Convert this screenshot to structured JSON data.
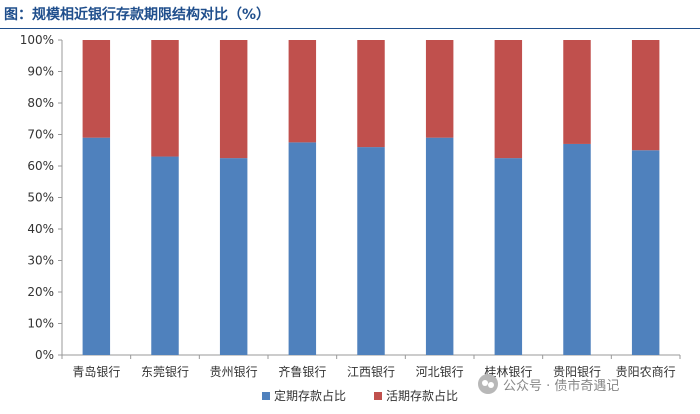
{
  "title": "图：规模相近银行存款期限结构对比（%）",
  "watermark": "公众号 · 债市奇遇记",
  "chart_data": {
    "type": "bar",
    "stacked": true,
    "categories": [
      "青岛银行",
      "东莞银行",
      "贵州银行",
      "齐鲁银行",
      "江西银行",
      "河北银行",
      "桂林银行",
      "贵阳银行",
      "贵阳农商行"
    ],
    "series": [
      {
        "name": "定期存款占比",
        "color": "#4f81bd",
        "values": [
          69,
          63,
          62.5,
          67.5,
          66,
          69,
          62.5,
          67,
          65
        ]
      },
      {
        "name": "活期存款占比",
        "color": "#c0504d",
        "values": [
          31,
          37,
          37.5,
          32.5,
          34,
          31,
          37.5,
          33,
          35
        ]
      }
    ],
    "yticks": [
      "0%",
      "10%",
      "20%",
      "30%",
      "40%",
      "50%",
      "60%",
      "70%",
      "80%",
      "90%",
      "100%"
    ],
    "ylim": [
      0,
      100
    ],
    "legend_position": "bottom",
    "grid": false
  }
}
